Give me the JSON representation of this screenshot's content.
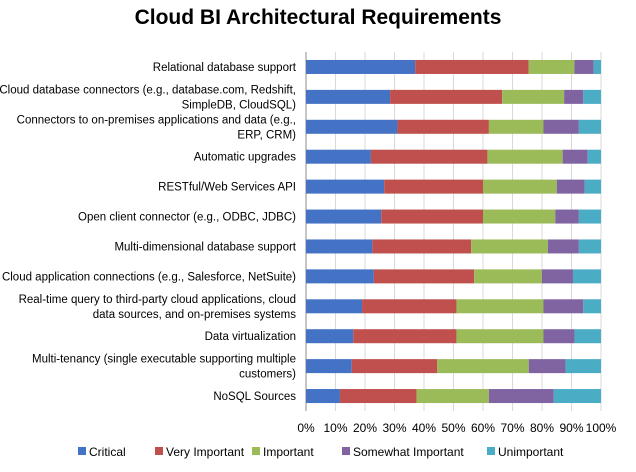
{
  "chart_data": {
    "type": "bar",
    "orientation": "horizontal",
    "stacked": "percent",
    "title": "Cloud BI Architectural Requirements",
    "xlabel": "",
    "ylabel": "",
    "xlim": [
      0,
      100
    ],
    "x_ticks": [
      "0%",
      "10%",
      "20%",
      "30%",
      "40%",
      "50%",
      "60%",
      "70%",
      "80%",
      "90%",
      "100%"
    ],
    "grid": "vertical",
    "legend_position": "bottom",
    "categories": [
      [
        "Relational database support"
      ],
      [
        "Cloud database connectors (e.g., database.com, Redshift,",
        "SimpleDB, CloudSQL)"
      ],
      [
        "Connectors to on-premises applications and data (e.g.,",
        "ERP, CRM)"
      ],
      [
        "Automatic upgrades"
      ],
      [
        "RESTful/Web Services API"
      ],
      [
        "Open client connector (e.g., ODBC, JDBC)"
      ],
      [
        "Multi-dimensional database support"
      ],
      [
        "Cloud application connections (e.g., Salesforce, NetSuite)"
      ],
      [
        "Real-time query to third-party cloud applications, cloud",
        "data sources, and on-premises systems"
      ],
      [
        "Data virtualization"
      ],
      [
        "Multi-tenancy (single executable supporting multiple",
        "customers)"
      ],
      [
        "NoSQL Sources"
      ]
    ],
    "series": [
      {
        "name": "Critical",
        "color": "#4472C4",
        "values": [
          37,
          28.5,
          31,
          22,
          26.5,
          25.5,
          22.5,
          23,
          19,
          16,
          15.5,
          11.5
        ]
      },
      {
        "name": "Very Important",
        "color": "#C0504D",
        "values": [
          38.5,
          38,
          31,
          39.5,
          33.5,
          34.5,
          33.5,
          34,
          32,
          35,
          29,
          26
        ]
      },
      {
        "name": "Important",
        "color": "#9BBB59",
        "values": [
          15.5,
          21,
          18.5,
          25.5,
          25,
          24.5,
          26,
          23,
          29.5,
          29.5,
          31,
          24.5
        ]
      },
      {
        "name": "Somewhat Important",
        "color": "#8064A2",
        "values": [
          6.5,
          6.5,
          12,
          8.5,
          9.5,
          8,
          10.5,
          10.5,
          13.5,
          10.5,
          12.5,
          22
        ]
      },
      {
        "name": "Unimportant",
        "color": "#4BACC6",
        "values": [
          2.5,
          6,
          7.5,
          4.5,
          5.5,
          7.5,
          7.5,
          9.5,
          6,
          9,
          12,
          16
        ]
      }
    ]
  }
}
